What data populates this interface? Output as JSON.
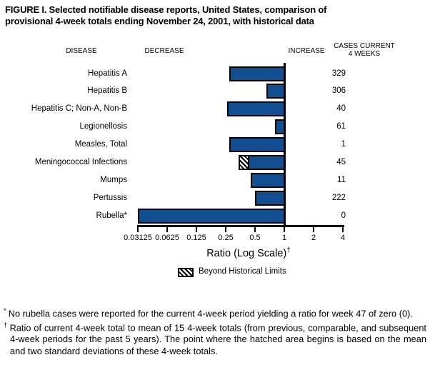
{
  "figure": {
    "title_line1": "FIGURE I. Selected notifiable disease reports, United States, comparison of",
    "title_line2": "provisional 4-week totals ending November 24, 2001, with historical data"
  },
  "table_headers": {
    "disease": "DISEASE",
    "decrease": "DECREASE",
    "increase": "INCREASE",
    "cases_line1": "CASES CURRENT",
    "cases_line2": "4 WEEKS"
  },
  "chart_data": {
    "type": "bar",
    "orientation": "horizontal",
    "scale": "log",
    "baseline_ratio": 1,
    "axis_range": [
      0.03125,
      4
    ],
    "axis_ticks": [
      "0.03125",
      "0.0625",
      "0.125",
      "0.25",
      "0.5",
      "1",
      "2",
      "4"
    ],
    "xlabel": "Ratio (Log Scale)",
    "xlabel_marker": "†",
    "series": [
      {
        "label": "Hepatitis A",
        "cases": 329,
        "ratio": 0.27
      },
      {
        "label": "Hepatitis B",
        "cases": 306,
        "ratio": 0.66
      },
      {
        "label": "Hepatitis C; Non-A, Non-B",
        "cases": 40,
        "ratio": 0.26
      },
      {
        "label": "Legionellosis",
        "cases": 61,
        "ratio": 0.8
      },
      {
        "label": "Measles, Total",
        "cases": 1,
        "ratio": 0.27
      },
      {
        "label": "Meningococcal Infections",
        "cases": 45,
        "ratio": 0.34,
        "beyond_historical_limits": true,
        "hatch_to": 0.44
      },
      {
        "label": "Mumps",
        "cases": 11,
        "ratio": 0.45
      },
      {
        "label": "Pertussis",
        "cases": 222,
        "ratio": 0.5
      },
      {
        "label": "Rubella*",
        "cases": 0,
        "ratio": 0,
        "bar_drawn_to_axis_min": true
      }
    ],
    "legend": {
      "swatch": "diagonal-hatch",
      "label": "Beyond Historical Limits"
    }
  },
  "footnotes": [
    {
      "marker": "*",
      "text": "No rubella cases were reported for the current 4-week period yielding a ratio for week 47 of zero (0)."
    },
    {
      "marker": "†",
      "text": "Ratio of current 4-week total to mean of 15 4-week totals (from previous, comparable, and subsequent 4-week periods for the past 5 years). The point where the hatched area begins is based on the mean and two standard deviations of these 4-week totals."
    }
  ],
  "colors": {
    "bar_fill": "#114e92",
    "bar_border": "#000000",
    "text": "#000000",
    "background": "#ffffff"
  }
}
